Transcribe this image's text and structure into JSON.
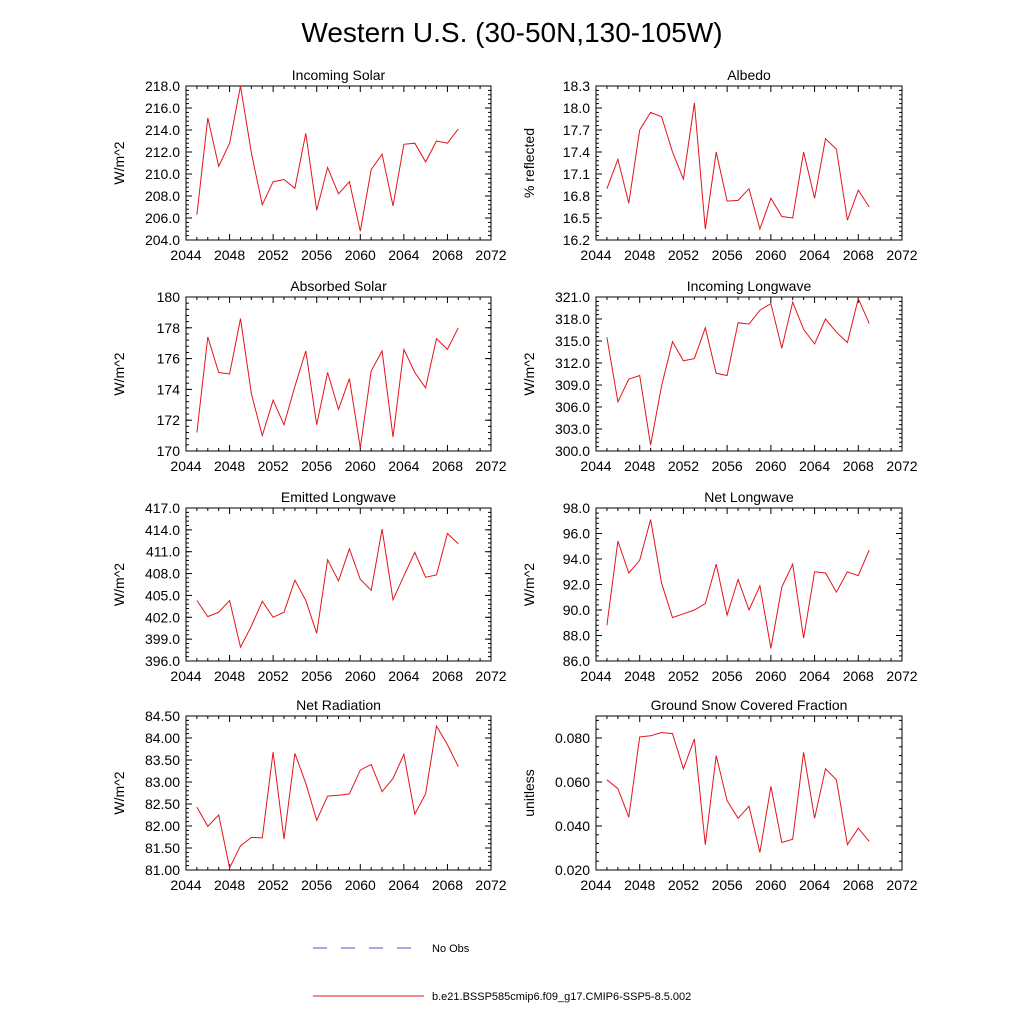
{
  "figure": {
    "title": "Western U.S. (30-50N,130-105W)"
  },
  "legend": {
    "obs_label": "No Obs",
    "obs_color": "#4a55c8",
    "model_label": "b.e21.BSSP585cmip6.f09_g17.CMIP6-SSP5-8.5.002",
    "model_color": "#e4141c"
  },
  "chart_data": [
    {
      "type": "line",
      "title": "Incoming Solar",
      "ylabel": "W/m^2",
      "xlim": [
        2044,
        2072
      ],
      "xticks": [
        "2044",
        "2048",
        "2052",
        "2056",
        "2060",
        "2064",
        "2068",
        "2072"
      ],
      "ylim": [
        204.0,
        218.0
      ],
      "yticks": [
        "204.0",
        "206.0",
        "208.0",
        "210.0",
        "212.0",
        "214.0",
        "216.0",
        "218.0"
      ],
      "x": [
        2045,
        2046,
        2047,
        2048,
        2049,
        2050,
        2051,
        2052,
        2053,
        2054,
        2055,
        2056,
        2057,
        2058,
        2059,
        2060,
        2061,
        2062,
        2063,
        2064,
        2065,
        2066,
        2067,
        2068,
        2069
      ],
      "series": [
        {
          "values": [
            206.3,
            215.1,
            210.7,
            212.8,
            218.0,
            211.9,
            207.2,
            209.3,
            209.5,
            208.7,
            213.7,
            206.7,
            210.6,
            208.2,
            209.3,
            204.8,
            210.4,
            211.8,
            207.1,
            212.7,
            212.8,
            211.1,
            213.0,
            212.8,
            214.1
          ]
        }
      ]
    },
    {
      "type": "line",
      "title": "Albedo",
      "ylabel": "% reflected",
      "xlim": [
        2044,
        2072
      ],
      "xticks": [
        "2044",
        "2048",
        "2052",
        "2056",
        "2060",
        "2064",
        "2068",
        "2072"
      ],
      "ylim": [
        16.2,
        18.3
      ],
      "yticks": [
        "16.2",
        "16.5",
        "16.8",
        "17.1",
        "17.4",
        "17.7",
        "18.0",
        "18.3"
      ],
      "x": [
        2045,
        2046,
        2047,
        2048,
        2049,
        2050,
        2051,
        2052,
        2053,
        2054,
        2055,
        2056,
        2057,
        2058,
        2059,
        2060,
        2061,
        2062,
        2063,
        2064,
        2065,
        2066,
        2067,
        2068,
        2069
      ],
      "series": [
        {
          "values": [
            16.9,
            17.3,
            16.7,
            17.7,
            17.94,
            17.88,
            17.4,
            17.03,
            18.07,
            16.35,
            17.4,
            16.73,
            16.74,
            16.9,
            16.35,
            16.77,
            16.52,
            16.5,
            17.4,
            16.77,
            17.58,
            17.44,
            16.47,
            16.88,
            16.65
          ]
        }
      ]
    },
    {
      "type": "line",
      "title": "Absorbed Solar",
      "ylabel": "W/m^2",
      "xlim": [
        2044,
        2072
      ],
      "xticks": [
        "2044",
        "2048",
        "2052",
        "2056",
        "2060",
        "2064",
        "2068",
        "2072"
      ],
      "ylim": [
        170,
        180
      ],
      "yticks": [
        "170",
        "172",
        "174",
        "176",
        "178",
        "180"
      ],
      "x": [
        2045,
        2046,
        2047,
        2048,
        2049,
        2050,
        2051,
        2052,
        2053,
        2054,
        2055,
        2056,
        2057,
        2058,
        2059,
        2060,
        2061,
        2062,
        2063,
        2064,
        2065,
        2066,
        2067,
        2068,
        2069
      ],
      "series": [
        {
          "values": [
            171.2,
            177.4,
            175.1,
            175.0,
            178.6,
            173.7,
            171.0,
            173.3,
            171.7,
            174.2,
            176.5,
            171.7,
            175.1,
            172.7,
            174.7,
            170.2,
            175.2,
            176.5,
            170.9,
            176.6,
            175.1,
            174.1,
            177.3,
            176.6,
            178.0
          ]
        }
      ]
    },
    {
      "type": "line",
      "title": "Incoming Longwave",
      "ylabel": "W/m^2",
      "xlim": [
        2044,
        2072
      ],
      "xticks": [
        "2044",
        "2048",
        "2052",
        "2056",
        "2060",
        "2064",
        "2068",
        "2072"
      ],
      "ylim": [
        300.0,
        321.0
      ],
      "yticks": [
        "300.0",
        "303.0",
        "306.0",
        "309.0",
        "312.0",
        "315.0",
        "318.0",
        "321.0"
      ],
      "x": [
        2045,
        2046,
        2047,
        2048,
        2049,
        2050,
        2051,
        2052,
        2053,
        2054,
        2055,
        2056,
        2057,
        2058,
        2059,
        2060,
        2061,
        2062,
        2063,
        2064,
        2065,
        2066,
        2067,
        2068,
        2069
      ],
      "series": [
        {
          "values": [
            315.5,
            306.7,
            309.8,
            310.3,
            300.8,
            308.9,
            314.9,
            312.3,
            312.6,
            316.8,
            310.6,
            310.3,
            317.5,
            317.3,
            319.2,
            320.1,
            314.0,
            320.3,
            316.6,
            314.6,
            318.0,
            316.2,
            314.8,
            320.8,
            317.4
          ]
        }
      ]
    },
    {
      "type": "line",
      "title": "Emitted Longwave",
      "ylabel": "W/m^2",
      "xlim": [
        2044,
        2072
      ],
      "xticks": [
        "2044",
        "2048",
        "2052",
        "2056",
        "2060",
        "2064",
        "2068",
        "2072"
      ],
      "ylim": [
        396.0,
        417.0
      ],
      "yticks": [
        "396.0",
        "399.0",
        "402.0",
        "405.0",
        "408.0",
        "411.0",
        "414.0",
        "417.0"
      ],
      "x": [
        2045,
        2046,
        2047,
        2048,
        2049,
        2050,
        2051,
        2052,
        2053,
        2054,
        2055,
        2056,
        2057,
        2058,
        2059,
        2060,
        2061,
        2062,
        2063,
        2064,
        2065,
        2066,
        2067,
        2068,
        2069
      ],
      "series": [
        {
          "values": [
            404.3,
            402.1,
            402.7,
            404.3,
            397.9,
            400.8,
            404.2,
            402.0,
            402.7,
            407.1,
            404.3,
            399.8,
            409.9,
            407.0,
            411.4,
            407.2,
            405.7,
            414.1,
            404.4,
            407.7,
            410.9,
            407.5,
            407.8,
            413.5,
            412.1
          ]
        }
      ]
    },
    {
      "type": "line",
      "title": "Net Longwave",
      "ylabel": "W/m^2",
      "xlim": [
        2044,
        2072
      ],
      "xticks": [
        "2044",
        "2048",
        "2052",
        "2056",
        "2060",
        "2064",
        "2068",
        "2072"
      ],
      "ylim": [
        86.0,
        98.0
      ],
      "yticks": [
        "86.0",
        "88.0",
        "90.0",
        "92.0",
        "94.0",
        "96.0",
        "98.0"
      ],
      "x": [
        2045,
        2046,
        2047,
        2048,
        2049,
        2050,
        2051,
        2052,
        2053,
        2054,
        2055,
        2056,
        2057,
        2058,
        2059,
        2060,
        2061,
        2062,
        2063,
        2064,
        2065,
        2066,
        2067,
        2068,
        2069
      ],
      "series": [
        {
          "values": [
            88.8,
            95.4,
            92.9,
            93.9,
            97.1,
            92.1,
            89.4,
            89.7,
            90.0,
            90.5,
            93.6,
            89.6,
            92.4,
            90.0,
            91.9,
            87.0,
            91.8,
            93.6,
            87.8,
            93.0,
            92.9,
            91.4,
            93.0,
            92.7,
            94.7
          ]
        }
      ]
    },
    {
      "type": "line",
      "title": "Net Radiation",
      "ylabel": "W/m^2",
      "xlim": [
        2044,
        2072
      ],
      "xticks": [
        "2044",
        "2048",
        "2052",
        "2056",
        "2060",
        "2064",
        "2068",
        "2072"
      ],
      "ylim": [
        81.0,
        84.5
      ],
      "yticks": [
        "81.00",
        "81.50",
        "82.00",
        "82.50",
        "83.00",
        "83.50",
        "84.00",
        "84.50"
      ],
      "x": [
        2045,
        2046,
        2047,
        2048,
        2049,
        2050,
        2051,
        2052,
        2053,
        2054,
        2055,
        2056,
        2057,
        2058,
        2059,
        2060,
        2061,
        2062,
        2063,
        2064,
        2065,
        2066,
        2067,
        2068,
        2069
      ],
      "series": [
        {
          "values": [
            82.43,
            81.99,
            82.25,
            81.05,
            81.55,
            81.74,
            81.73,
            83.68,
            81.7,
            83.65,
            82.97,
            82.13,
            82.68,
            82.7,
            82.73,
            83.27,
            83.4,
            82.78,
            83.08,
            83.63,
            82.27,
            82.73,
            84.27,
            83.85,
            83.35
          ]
        }
      ]
    },
    {
      "type": "line",
      "title": "Ground Snow Covered Fraction",
      "ylabel": "unitless",
      "xlim": [
        2044,
        2072
      ],
      "xticks": [
        "2044",
        "2048",
        "2052",
        "2056",
        "2060",
        "2064",
        "2068",
        "2072"
      ],
      "ylim": [
        0.02,
        0.09
      ],
      "yticks": [
        "0.020",
        "0.040",
        "0.060",
        "0.080"
      ],
      "x": [
        2045,
        2046,
        2047,
        2048,
        2049,
        2050,
        2051,
        2052,
        2053,
        2054,
        2055,
        2056,
        2057,
        2058,
        2059,
        2060,
        2061,
        2062,
        2063,
        2064,
        2065,
        2066,
        2067,
        2068,
        2069
      ],
      "series": [
        {
          "values": [
            0.061,
            0.057,
            0.044,
            0.0805,
            0.081,
            0.0825,
            0.082,
            0.066,
            0.0795,
            0.0315,
            0.072,
            0.0515,
            0.0435,
            0.049,
            0.028,
            0.058,
            0.0325,
            0.034,
            0.0735,
            0.0435,
            0.066,
            0.061,
            0.0315,
            0.039,
            0.033
          ]
        }
      ]
    }
  ]
}
